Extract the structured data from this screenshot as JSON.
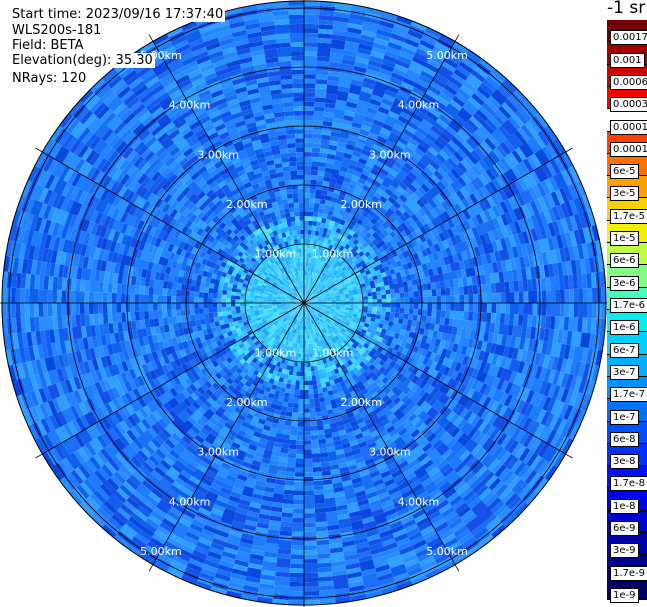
{
  "info": {
    "start_time": "Start time: 2023/09/16 17:37:40",
    "instrument": "WLS200s-181",
    "field": "Field: BETA",
    "elevation": "Elevation(deg): 35.30",
    "nrays": "NRays: 120"
  },
  "colorbar": {
    "title": "-1 sr",
    "colors": [
      "#000066",
      "#000088",
      "#0000aa",
      "#0000cc",
      "#0000ee",
      "#0010ff",
      "#0030ff",
      "#0050ff",
      "#0070ff",
      "#0090ff",
      "#00b0ff",
      "#00d0ff",
      "#00f0f0",
      "#40ffc0",
      "#80ff80",
      "#c0ff40",
      "#f0f000",
      "#ffd000",
      "#ffa000",
      "#ff7000",
      "#ff4000",
      "#ffffff",
      "#ff0000",
      "#d00000",
      "#a00000",
      "#700000"
    ],
    "labels": [
      "1e-9",
      "1.7e-9",
      "3e-9",
      "6e-9",
      "1e-8",
      "1.7e-8",
      "3e-8",
      "6e-8",
      "1e-7",
      "1.7e-7",
      "3e-7",
      "6e-7",
      "1e-6",
      "1.7e-6",
      "3e-6",
      "6e-6",
      "1e-5",
      "1.7e-5",
      "3e-5",
      "6e-5",
      "0.0001",
      "0.00017",
      "0.0003",
      "0.0006",
      "0.001",
      "0.0017"
    ]
  },
  "chart_data": {
    "type": "heatmap",
    "projection": "polar (PPI)",
    "range_unit": "km",
    "nrays": 120,
    "elevation_deg": 35.3,
    "field": "BETA",
    "range_ring_labels": [
      "1.00km",
      "2.00km",
      "3.00km",
      "4.00km",
      "5.00km"
    ],
    "range_rings_km": [
      1,
      2,
      3,
      4,
      5
    ],
    "spokes_deg": [
      0,
      30,
      60,
      90,
      120,
      150,
      180,
      210,
      240,
      270,
      300,
      330
    ],
    "grid": true,
    "value_profile_by_range_km": [
      {
        "range_km": 0.5,
        "dominant_value": "1.7e-7"
      },
      {
        "range_km": 1.0,
        "dominant_value": "6e-8"
      },
      {
        "range_km": 2.0,
        "dominant_value": "3e-8"
      },
      {
        "range_km": 3.0,
        "dominant_value": "1.7e-8"
      },
      {
        "range_km": 5.0,
        "dominant_value": "1.7e-8"
      }
    ],
    "colorscale": "log10, 1e-9 to 0.0017 sr-1"
  }
}
